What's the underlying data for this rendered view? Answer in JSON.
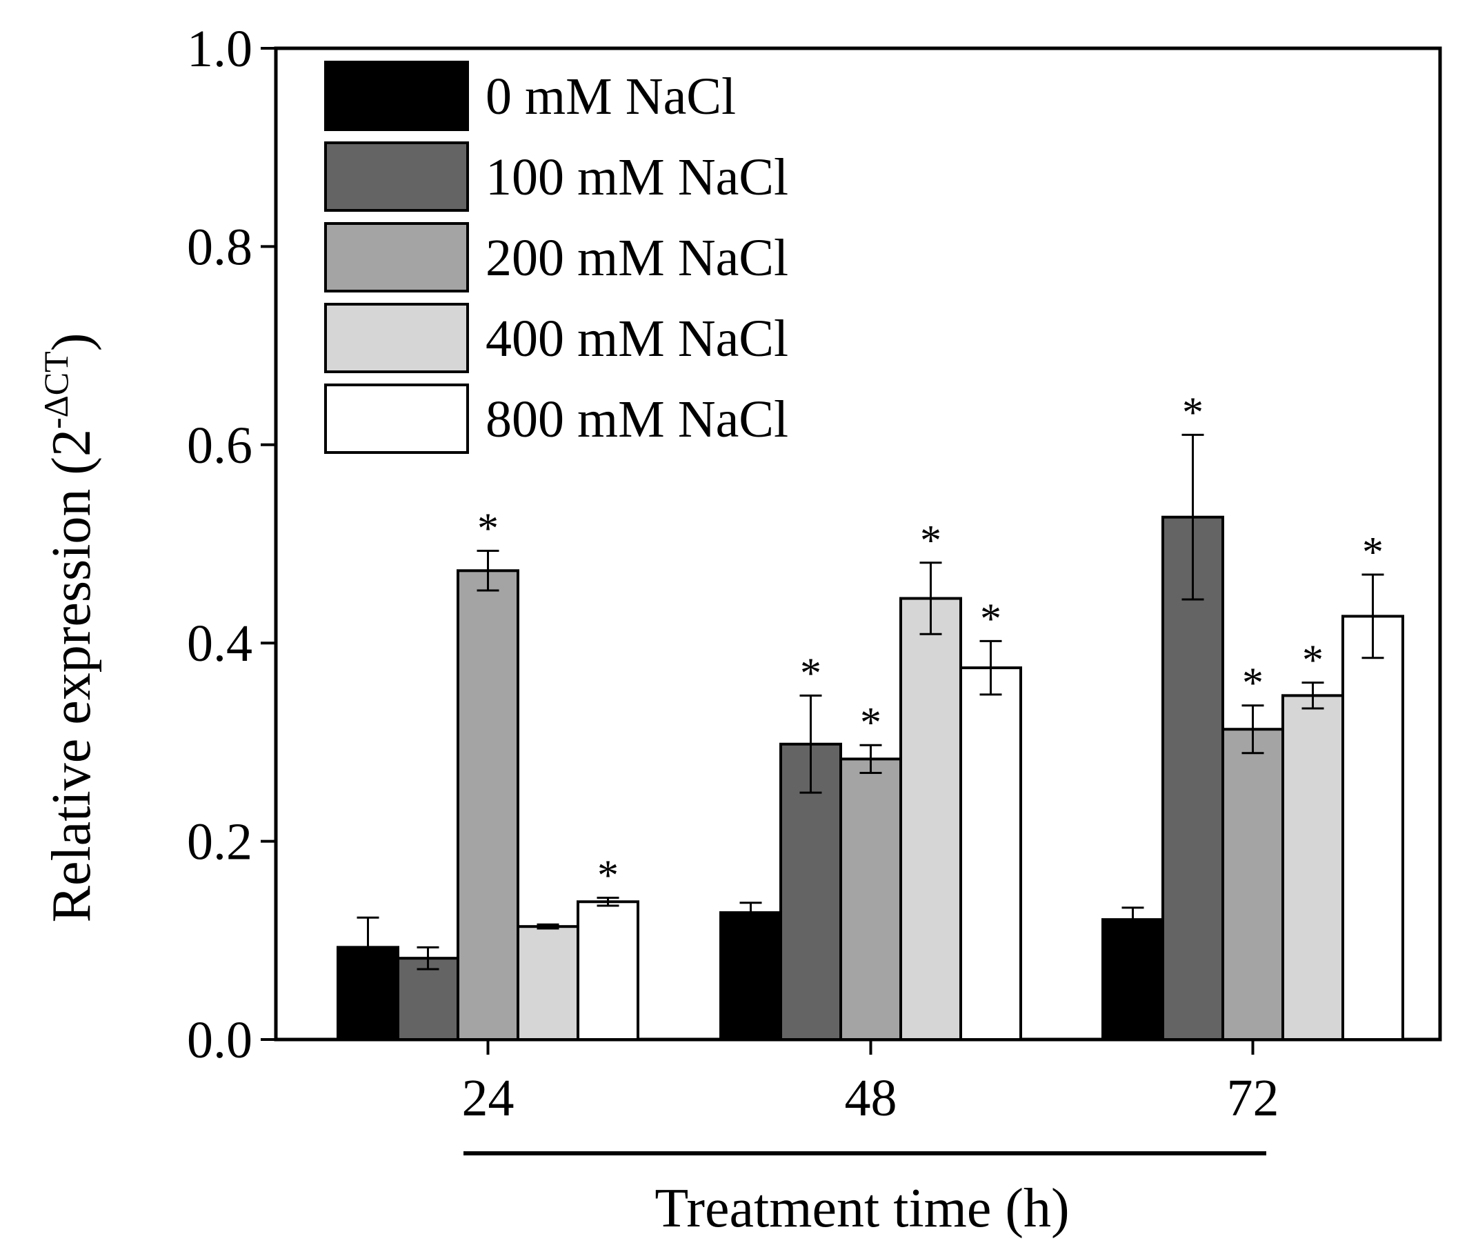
{
  "chart_data": {
    "type": "bar",
    "title": "",
    "xlabel": "Treatment time (h)",
    "ylabel": "Relative expression (2",
    "ylabel_superscript": "-ΔCT",
    "ylabel_close": ")",
    "ylim": [
      0,
      1.0
    ],
    "yticks": [
      0.0,
      0.2,
      0.4,
      0.6,
      0.8,
      1.0
    ],
    "ytick_labels": [
      "0.0",
      "0.2",
      "0.4",
      "0.6",
      "0.8",
      "1.0"
    ],
    "categories": [
      "24",
      "48",
      "72"
    ],
    "legend_position": "top-left",
    "significance_marker": "*",
    "series": [
      {
        "name": "0 mM NaCl",
        "color": "#000000",
        "values": [
          0.093,
          0.128,
          0.121
        ],
        "errors": [
          0.03,
          0.01,
          0.012
        ],
        "significant": [
          false,
          false,
          false
        ]
      },
      {
        "name": "100 mM NaCl",
        "color": "#646464",
        "values": [
          0.082,
          0.298,
          0.527
        ],
        "errors": [
          0.011,
          0.049,
          0.083
        ],
        "significant": [
          false,
          true,
          true
        ]
      },
      {
        "name": "200 mM NaCl",
        "color": "#a4a4a4",
        "values": [
          0.473,
          0.283,
          0.313
        ],
        "errors": [
          0.02,
          0.014,
          0.024
        ],
        "significant": [
          true,
          true,
          true
        ]
      },
      {
        "name": "400 mM NaCl",
        "color": "#d6d6d6",
        "values": [
          0.114,
          0.445,
          0.347
        ],
        "errors": [
          0.002,
          0.036,
          0.013
        ],
        "significant": [
          false,
          true,
          true
        ]
      },
      {
        "name": "800 mM NaCl",
        "color": "#ffffff",
        "values": [
          0.139,
          0.375,
          0.427
        ],
        "errors": [
          0.004,
          0.027,
          0.042
        ],
        "significant": [
          true,
          true,
          true
        ]
      }
    ]
  }
}
